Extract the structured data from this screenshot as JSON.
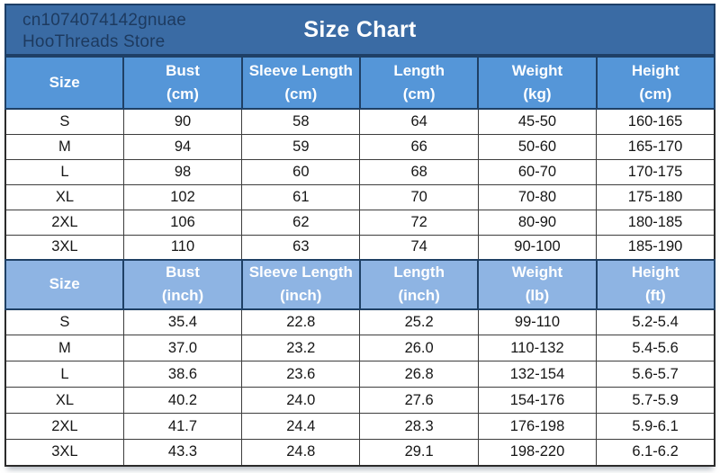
{
  "banner": {
    "store_line1": "cn1074074142gnuae",
    "store_line2": "HooThreads Store",
    "title": "Size Chart"
  },
  "colors": {
    "banner_bg": "#3a6ba4",
    "banner_border": "#1e3f66",
    "banner_store_text": "#1d3a5f",
    "title_text": "#ffffff",
    "header_cm_bg": "#5596d8",
    "header_inch_bg": "#8eb4e3",
    "header_text": "#ffffff",
    "header_border": "#1f4065",
    "cell_border": "#3d3d3d",
    "cell_text": "#161616",
    "cell_bg": "#ffffff"
  },
  "table": {
    "sections": [
      {
        "id": "cm",
        "headers": [
          {
            "label": "Size",
            "unit": ""
          },
          {
            "label": "Bust",
            "unit": "(cm)"
          },
          {
            "label": "Sleeve Length",
            "unit": "(cm)"
          },
          {
            "label": "Length",
            "unit": "(cm)"
          },
          {
            "label": "Weight",
            "unit": "(kg)"
          },
          {
            "label": "Height",
            "unit": "(cm)"
          }
        ],
        "rows": [
          [
            "S",
            "90",
            "58",
            "64",
            "45-50",
            "160-165"
          ],
          [
            "M",
            "94",
            "59",
            "66",
            "50-60",
            "165-170"
          ],
          [
            "L",
            "98",
            "60",
            "68",
            "60-70",
            "170-175"
          ],
          [
            "XL",
            "102",
            "61",
            "70",
            "70-80",
            "175-180"
          ],
          [
            "2XL",
            "106",
            "62",
            "72",
            "80-90",
            "180-185"
          ],
          [
            "3XL",
            "110",
            "63",
            "74",
            "90-100",
            "185-190"
          ]
        ]
      },
      {
        "id": "inch",
        "headers": [
          {
            "label": "Size",
            "unit": ""
          },
          {
            "label": "Bust",
            "unit": "(inch)"
          },
          {
            "label": "Sleeve Length",
            "unit": "(inch)"
          },
          {
            "label": "Length",
            "unit": "(inch)"
          },
          {
            "label": "Weight",
            "unit": "(lb)"
          },
          {
            "label": "Height",
            "unit": "(ft)"
          }
        ],
        "rows": [
          [
            "S",
            "35.4",
            "22.8",
            "25.2",
            "99-110",
            "5.2-5.4"
          ],
          [
            "M",
            "37.0",
            "23.2",
            "26.0",
            "110-132",
            "5.4-5.6"
          ],
          [
            "L",
            "38.6",
            "23.6",
            "26.8",
            "132-154",
            "5.6-5.7"
          ],
          [
            "XL",
            "40.2",
            "24.0",
            "27.6",
            "154-176",
            "5.7-5.9"
          ],
          [
            "2XL",
            "41.7",
            "24.4",
            "28.3",
            "176-198",
            "5.9-6.1"
          ],
          [
            "3XL",
            "43.3",
            "24.8",
            "29.1",
            "198-220",
            "6.1-6.2"
          ]
        ]
      }
    ]
  },
  "chart_data": [
    {
      "type": "table",
      "title": "Size Chart",
      "columns": [
        "Size",
        "Bust (cm)",
        "Sleeve Length (cm)",
        "Length (cm)",
        "Weight (kg)",
        "Height (cm)"
      ],
      "rows": [
        [
          "S",
          "90",
          "58",
          "64",
          "45-50",
          "160-165"
        ],
        [
          "M",
          "94",
          "59",
          "66",
          "50-60",
          "165-170"
        ],
        [
          "L",
          "98",
          "60",
          "68",
          "60-70",
          "170-175"
        ],
        [
          "XL",
          "102",
          "61",
          "70",
          "70-80",
          "175-180"
        ],
        [
          "2XL",
          "106",
          "62",
          "72",
          "80-90",
          "180-185"
        ],
        [
          "3XL",
          "110",
          "63",
          "74",
          "90-100",
          "185-190"
        ]
      ]
    },
    {
      "type": "table",
      "title": "Size Chart",
      "columns": [
        "Size",
        "Bust (inch)",
        "Sleeve Length (inch)",
        "Length (inch)",
        "Weight (lb)",
        "Height (ft)"
      ],
      "rows": [
        [
          "S",
          "35.4",
          "22.8",
          "25.2",
          "99-110",
          "5.2-5.4"
        ],
        [
          "M",
          "37.0",
          "23.2",
          "26.0",
          "110-132",
          "5.4-5.6"
        ],
        [
          "L",
          "38.6",
          "23.6",
          "26.8",
          "132-154",
          "5.6-5.7"
        ],
        [
          "XL",
          "40.2",
          "24.0",
          "27.6",
          "154-176",
          "5.7-5.9"
        ],
        [
          "2XL",
          "41.7",
          "24.4",
          "28.3",
          "176-198",
          "5.9-6.1"
        ],
        [
          "3XL",
          "43.3",
          "24.8",
          "29.1",
          "198-220",
          "6.1-6.2"
        ]
      ]
    }
  ]
}
